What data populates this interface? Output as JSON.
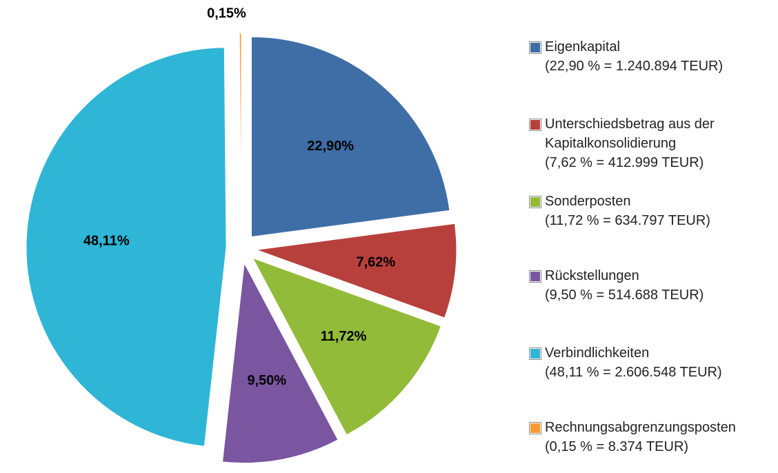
{
  "chart_data": {
    "type": "pie",
    "categories": [
      "Eigenkapital",
      "Unterschiedsbetrag aus der Kapitalkonsolidierung",
      "Sonderposten",
      "Rückstellungen",
      "Verbindlichkeiten",
      "Rechnungsabgrenzungsposten"
    ],
    "values": [
      22.9,
      7.62,
      11.72,
      9.5,
      48.11,
      0.15
    ],
    "value_labels": [
      "22,90%",
      "7,62%",
      "11,72%",
      "9,50%",
      "48,11%",
      "0,15%"
    ],
    "legend_details": [
      "(22,90 % = 1.240.894 TEUR)",
      "(7,62 % = 412.999 TEUR)",
      "(11,72 % = 634.797 TEUR)",
      "(9,50 % = 514.688 TEUR)",
      "(48,11 % = 2.606.548 TEUR)",
      "(0,15 % = 8.374 TEUR)"
    ],
    "colors": [
      "#3f6ea7",
      "#b8403c",
      "#93bb3a",
      "#7a55a0",
      "#2fb5d6",
      "#f79a32"
    ],
    "legend": "right"
  }
}
